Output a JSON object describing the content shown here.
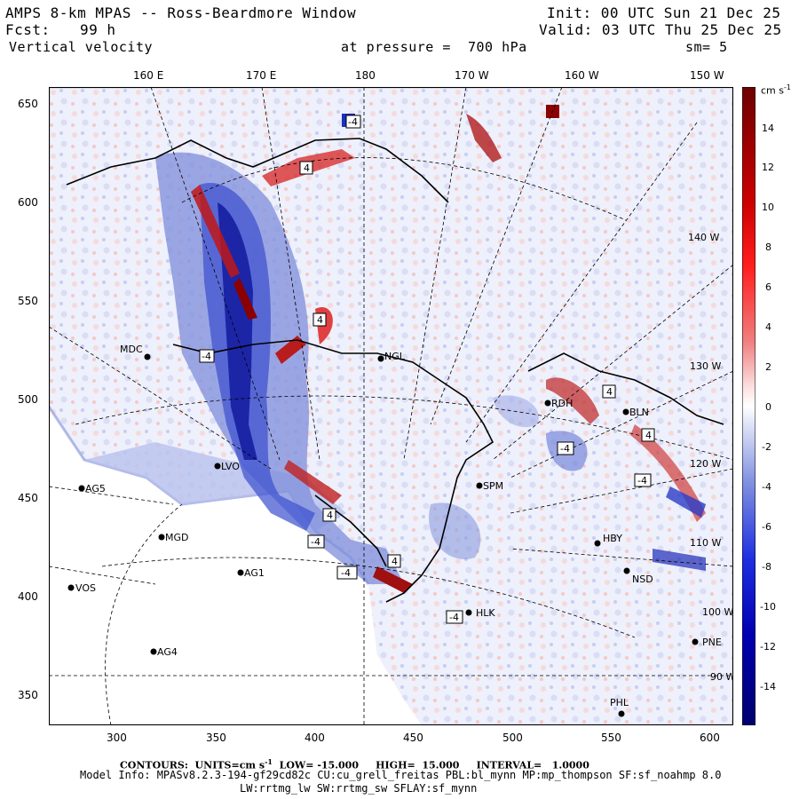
{
  "header": {
    "title": "AMPS 8-km MPAS -- Ross-Beardmore Window",
    "init": "Init: 00 UTC Sun 21 Dec 25",
    "fcst_label": "Fcst:",
    "fcst_value": "99 h",
    "valid": "Valid: 03 UTC Thu 25 Dec 25",
    "field": "Vertical velocity",
    "pressure": "at pressure =  700 hPa",
    "smoothing": "sm= 5"
  },
  "top_axis": {
    "labels": [
      "160 E",
      "170 E",
      "180",
      "170 W",
      "160 W",
      "150 W"
    ]
  },
  "left_axis": {
    "labels": [
      "650",
      "600",
      "550",
      "500",
      "450",
      "400",
      "350"
    ]
  },
  "bottom_axis": {
    "labels": [
      "300",
      "350",
      "400",
      "450",
      "500",
      "550",
      "600"
    ]
  },
  "right_meridian_labels": [
    "140 W",
    "130 W",
    "120 W",
    "110 W",
    "100 W",
    "90 W"
  ],
  "colorbar": {
    "units": "cm s",
    "units_exp": "-1",
    "ticks": [
      "14",
      "12",
      "10",
      "8",
      "6",
      "4",
      "2",
      "0",
      "-2",
      "-4",
      "-6",
      "-8",
      "-10",
      "-12",
      "-14"
    ],
    "top_color": "#7a0000",
    "bottom_color": "#00006e"
  },
  "stations": [
    {
      "name": "MDC"
    },
    {
      "name": "NGL"
    },
    {
      "name": "LVO"
    },
    {
      "name": "AG5"
    },
    {
      "name": "MGD"
    },
    {
      "name": "AG1"
    },
    {
      "name": "VOS"
    },
    {
      "name": "AG4"
    },
    {
      "name": "SPM"
    },
    {
      "name": "HLK"
    },
    {
      "name": "NSD"
    },
    {
      "name": "PNE"
    },
    {
      "name": "PHL"
    },
    {
      "name": "HBY"
    },
    {
      "name": "RDH"
    },
    {
      "name": "BLN"
    }
  ],
  "field_labels": [
    "-4",
    "4",
    "-4",
    "4",
    "-4",
    "4",
    "-4",
    "4",
    "-4",
    "4",
    "-4",
    "4",
    "-4"
  ],
  "footer": {
    "contours": "CONTOURS:  UNITS=cm s",
    "contours_exp": "-1",
    "contours_rest": "  LOW= -15.000     HIGH=  15.000     INTERVAL=   1.0000",
    "model_info": "Model Info: MPASv8.2.3-194-gf29cd82c CU:cu_grell_freitas PBL:bl_mynn MP:mp_thompson SF:sf_noahmp 8.0",
    "model_info2": "LW:rrtmg_lw SW:rrtmg_sw SFLAY:sf_mynn"
  }
}
